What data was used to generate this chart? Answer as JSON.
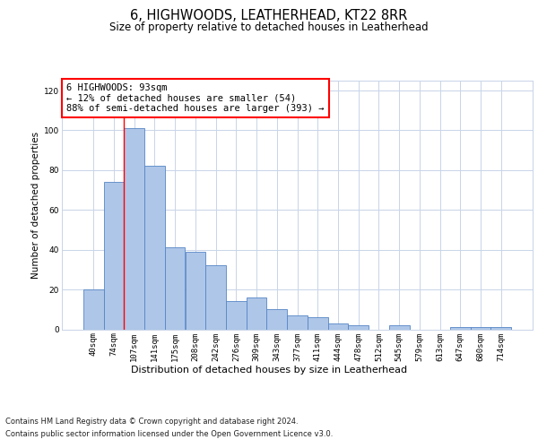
{
  "title": "6, HIGHWOODS, LEATHERHEAD, KT22 8RR",
  "subtitle": "Size of property relative to detached houses in Leatherhead",
  "xlabel": "Distribution of detached houses by size in Leatherhead",
  "ylabel": "Number of detached properties",
  "footer_line1": "Contains HM Land Registry data © Crown copyright and database right 2024.",
  "footer_line2": "Contains public sector information licensed under the Open Government Licence v3.0.",
  "categories": [
    "40sqm",
    "74sqm",
    "107sqm",
    "141sqm",
    "175sqm",
    "208sqm",
    "242sqm",
    "276sqm",
    "309sqm",
    "343sqm",
    "377sqm",
    "411sqm",
    "444sqm",
    "478sqm",
    "512sqm",
    "545sqm",
    "579sqm",
    "613sqm",
    "647sqm",
    "680sqm",
    "714sqm"
  ],
  "values": [
    20,
    74,
    101,
    82,
    41,
    39,
    32,
    14,
    16,
    10,
    7,
    6,
    3,
    2,
    0,
    2,
    0,
    0,
    1,
    1,
    1
  ],
  "bar_color": "#aec6e8",
  "bar_edge_color": "#5585c5",
  "ylim": [
    0,
    125
  ],
  "yticks": [
    0,
    20,
    40,
    60,
    80,
    100,
    120
  ],
  "grid_color": "#c8d4e8",
  "annotation_text": "6 HIGHWOODS: 93sqm\n← 12% of detached houses are smaller (54)\n88% of semi-detached houses are larger (393) →",
  "annotation_box_color": "white",
  "annotation_box_edge_color": "red",
  "red_line_x": 1.5,
  "title_fontsize": 10.5,
  "subtitle_fontsize": 8.5,
  "ylabel_fontsize": 7.5,
  "xlabel_fontsize": 8,
  "tick_fontsize": 6.5,
  "annotation_fontsize": 7.5,
  "footer_fontsize": 6.0,
  "background_color": "white"
}
